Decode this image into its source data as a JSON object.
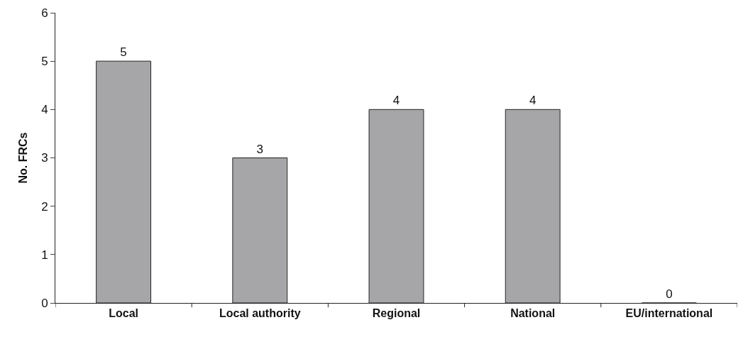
{
  "chart_data": {
    "type": "bar",
    "ylabel": "No. FRCs",
    "categories": [
      "Local",
      "Local authority",
      "Regional",
      "National",
      "EU/international"
    ],
    "values": [
      5,
      3,
      4,
      4,
      0
    ],
    "color": "#a6a6a8",
    "ylim": [
      0,
      6
    ],
    "yticks": [
      0,
      1,
      2,
      3,
      4,
      5,
      6
    ],
    "data_labels": true
  }
}
